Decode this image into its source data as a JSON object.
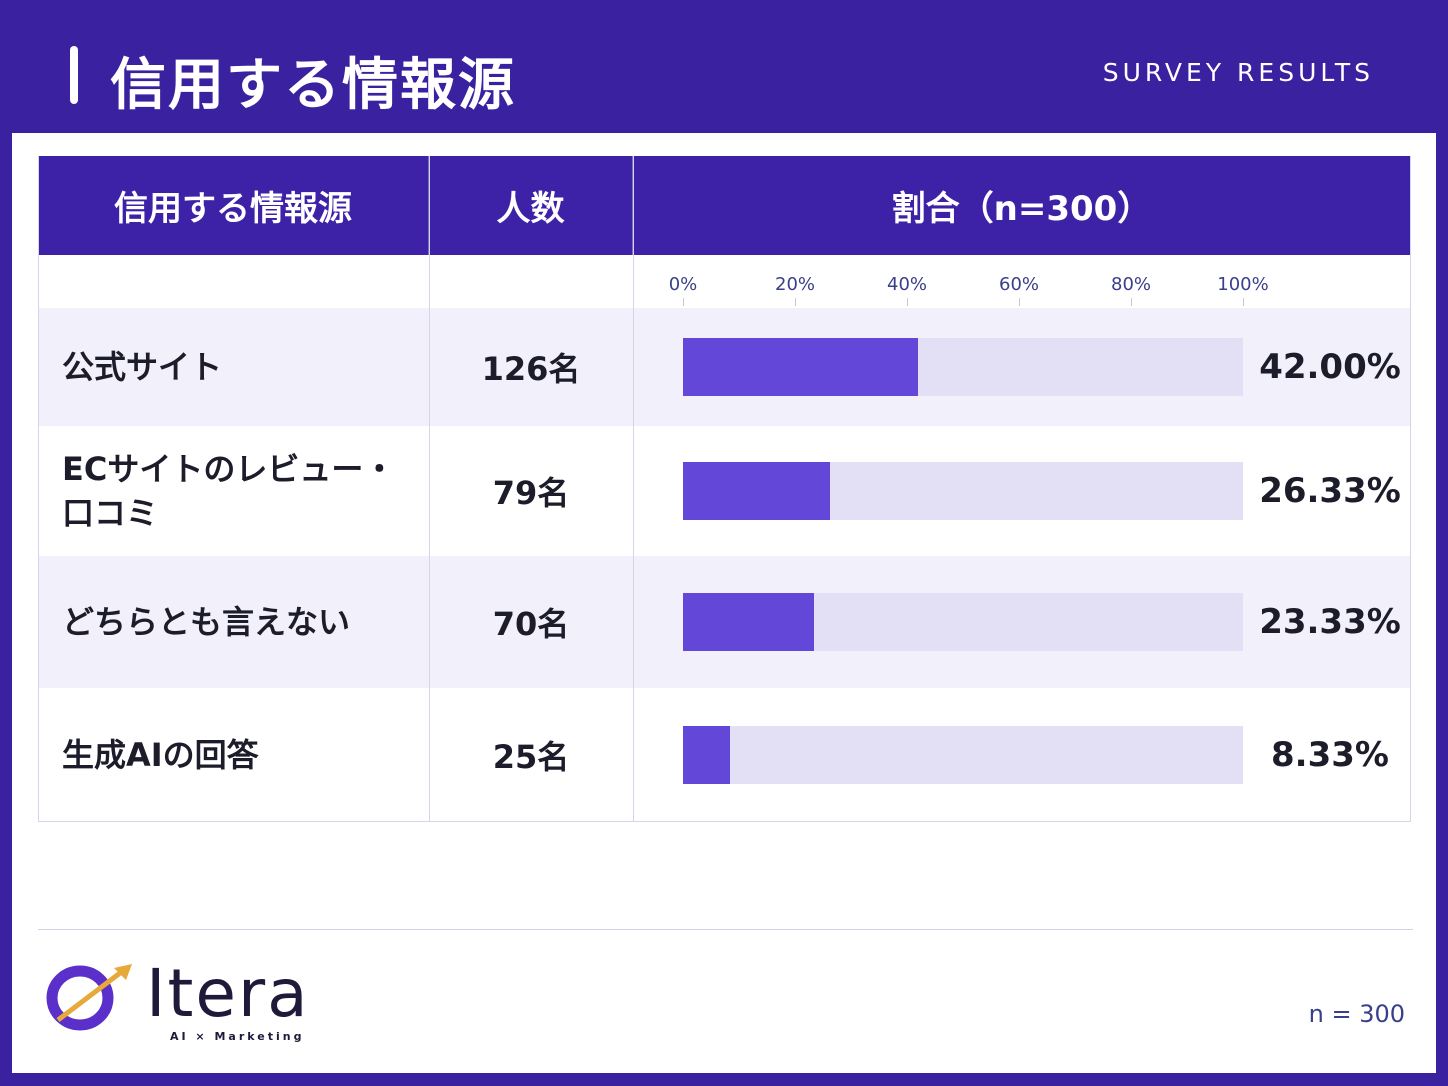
{
  "header": {
    "title": "信用する情報源",
    "tag": "SURVEY RESULTS"
  },
  "table": {
    "columns": [
      "信用する情報源",
      "人数",
      "割合（n=300）"
    ],
    "xlim": [
      0,
      100
    ],
    "xticks": [
      {
        "value": 0,
        "label": "0%"
      },
      {
        "value": 20,
        "label": "20%"
      },
      {
        "value": 40,
        "label": "40%"
      },
      {
        "value": 60,
        "label": "60%"
      },
      {
        "value": 80,
        "label": "80%"
      },
      {
        "value": 100,
        "label": "100%"
      }
    ],
    "rows": [
      {
        "label": "公式サイト",
        "count": "126名",
        "value": 42.0,
        "value_label": "42.00%"
      },
      {
        "label": "ECサイトのレビュー・口コミ",
        "count": "79名",
        "value": 26.33,
        "value_label": "26.33%"
      },
      {
        "label": "どちらとも言えない",
        "count": "70名",
        "value": 23.33,
        "value_label": "23.33%"
      },
      {
        "label": "生成AIの回答",
        "count": "25名",
        "value": 8.33,
        "value_label": "8.33%"
      }
    ]
  },
  "footer": {
    "logo": "Itera",
    "logo_sub": "AI × Marketing",
    "note": "n = 300"
  }
}
